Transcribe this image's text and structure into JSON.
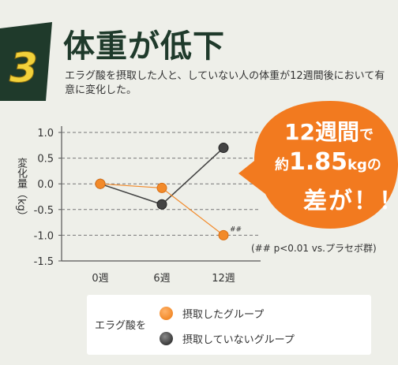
{
  "badge": {
    "number": "3",
    "bg_color": "#1f3a2b",
    "number_color": "#f2d13a"
  },
  "headline": "体重が低下",
  "description": "エラグ酸を摂取した人と、していない人の体重が12週間後において有意に変化した。",
  "callout": {
    "line1_a": "12週間",
    "line1_b": "で",
    "line2_a": "約",
    "line2_b": "1.85",
    "line2_c": "kg",
    "line2_d": "の",
    "line3": "差が！！",
    "color": "#f27a1f"
  },
  "footnote": "(## p<0.01 vs.プラセボ群)",
  "legend": {
    "lead": "エラグ酸を",
    "items": [
      {
        "label": "摂取したグループ",
        "color": "#f28a2a"
      },
      {
        "label": "摂取していないグループ",
        "color": "#444444"
      }
    ]
  },
  "chart_data": {
    "type": "line",
    "ylabel": "変化量（kg）",
    "categories": [
      "0週",
      "6週",
      "12週"
    ],
    "yticks": [
      "1.0",
      "0.5",
      "0.0",
      "-0.5",
      "-1.0",
      "-1.5"
    ],
    "ylim": [
      -1.5,
      1.0
    ],
    "grid": true,
    "series": [
      {
        "name": "摂取したグループ",
        "values": [
          0.0,
          -0.08,
          -1.0
        ],
        "color": "#f28a2a"
      },
      {
        "name": "摂取していないグループ",
        "values": [
          0.0,
          -0.4,
          0.7
        ],
        "color": "#444444"
      }
    ],
    "annotations": [
      {
        "text": "##",
        "series": 0,
        "index": 2
      }
    ]
  }
}
